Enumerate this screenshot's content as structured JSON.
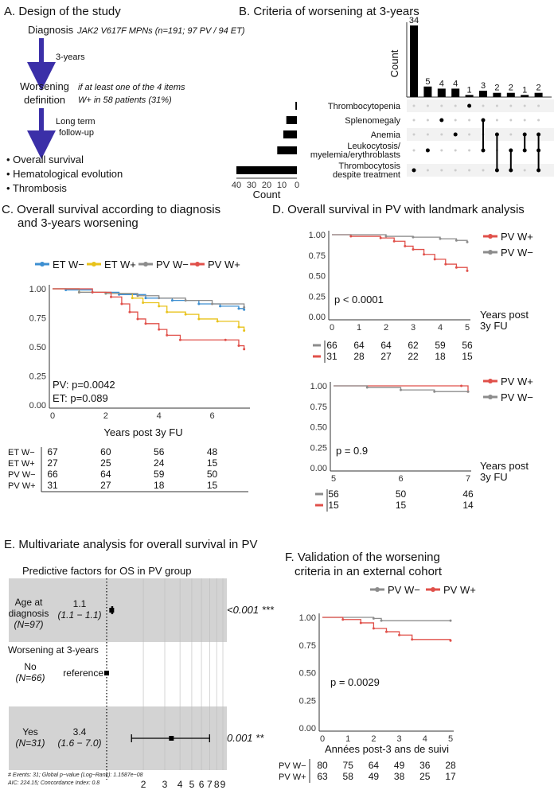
{
  "colors": {
    "arrow": "#3b2fa8",
    "et_wminus": "#3d8fd1",
    "et_wplus": "#e8c21a",
    "pv_wminus": "#8c8c8c",
    "pv_wplus": "#e0504a",
    "band": "#d3d3d3"
  },
  "panelA": {
    "title": "A. Design of the study",
    "diagnosis": "Diagnosis",
    "diagnosis_detail": "JAK2 V617F MPNs (n=191; 97 PV / 94 ET)",
    "arrow1_label": "3-years",
    "worsening_l1": "Worsening",
    "worsening_l2": "definition",
    "worsening_detail_l1": "if at least one of the 4 items",
    "worsening_detail_l2": "W+ in 58 patients (31%)",
    "arrow2_l1": "Long term",
    "arrow2_l2": "follow-up",
    "outcomes": [
      "• Overall survival",
      "• Hematological evolution",
      "• Thrombosis"
    ]
  },
  "chart_data": [
    {
      "id": "B",
      "type": "upset",
      "title": "B. Criteria of worsening at 3-years",
      "ylabel": "Count",
      "set_xlabel": "Count",
      "intersection_values": [
        34,
        5,
        4,
        4,
        1,
        3,
        2,
        2,
        1,
        2
      ],
      "sets": [
        "Thrombocytopenia",
        "Splenomegaly",
        "Anemia",
        "Leukocytosis/",
        "Thrombocytosis"
      ],
      "sets_line2": [
        "",
        "",
        "",
        "myelemia/erythroblasts",
        "despite treatment"
      ],
      "set_sizes": [
        1,
        7,
        9,
        13,
        40
      ],
      "set_axis_ticks": [
        "40",
        "30",
        "20",
        "10",
        "0"
      ],
      "matrix": [
        [
          4
        ],
        [
          3
        ],
        [
          1
        ],
        [
          2
        ],
        [
          0
        ],
        [
          1,
          3
        ],
        [
          2,
          4
        ],
        [
          3,
          4
        ],
        [
          2,
          3
        ],
        [
          2,
          3,
          4
        ]
      ]
    },
    {
      "id": "C",
      "type": "line",
      "title_l1": "C. Overall survival according to diagnosis",
      "title_l2": "and 3-years worsening",
      "xlabel": "Years post 3y FU",
      "xlim": [
        0,
        7.3
      ],
      "ylim": [
        0,
        1
      ],
      "xticks": [
        "0",
        "2",
        "4",
        "6"
      ],
      "yticks": [
        "0.00",
        "0.25",
        "0.50",
        "0.75",
        "1.00"
      ],
      "annotations": [
        "PV: p=0.0042",
        "ET: p=0.089"
      ],
      "series": [
        {
          "name": "ET W−",
          "color": "#3d8fd1",
          "points": [
            [
              0,
              1
            ],
            [
              0.5,
              0.99
            ],
            [
              1.5,
              0.97
            ],
            [
              2.5,
              0.95
            ],
            [
              3.5,
              0.92
            ],
            [
              4.5,
              0.9
            ],
            [
              5.5,
              0.87
            ],
            [
              6.3,
              0.85
            ],
            [
              7,
              0.83
            ],
            [
              7.2,
              0.82
            ]
          ]
        },
        {
          "name": "ET W+",
          "color": "#e8c21a",
          "points": [
            [
              0,
              1
            ],
            [
              1,
              0.97
            ],
            [
              2,
              0.96
            ],
            [
              3,
              0.92
            ],
            [
              3.4,
              0.88
            ],
            [
              4,
              0.85
            ],
            [
              4.3,
              0.8
            ],
            [
              5,
              0.78
            ],
            [
              5.5,
              0.74
            ],
            [
              6.2,
              0.72
            ],
            [
              7,
              0.67
            ],
            [
              7.2,
              0.64
            ]
          ]
        },
        {
          "name": "PV W−",
          "color": "#8c8c8c",
          "points": [
            [
              0,
              1
            ],
            [
              1,
              0.97
            ],
            [
              2,
              0.96
            ],
            [
              3.2,
              0.94
            ],
            [
              4,
              0.92
            ],
            [
              5,
              0.9
            ],
            [
              6,
              0.87
            ],
            [
              7.2,
              0.84
            ]
          ]
        },
        {
          "name": "PV W+",
          "color": "#e0504a",
          "points": [
            [
              0,
              1
            ],
            [
              1.5,
              0.97
            ],
            [
              2.2,
              0.93
            ],
            [
              2.6,
              0.87
            ],
            [
              2.9,
              0.8
            ],
            [
              3.2,
              0.74
            ],
            [
              3.5,
              0.7
            ],
            [
              4,
              0.65
            ],
            [
              4.3,
              0.6
            ],
            [
              4.8,
              0.56
            ],
            [
              6.5,
              0.56
            ],
            [
              7,
              0.51
            ],
            [
              7.2,
              0.48
            ]
          ]
        }
      ],
      "risk_table": [
        {
          "label": "ET W−",
          "values": [
            "67",
            "60",
            "56",
            "48"
          ]
        },
        {
          "label": "ET W+",
          "values": [
            "27",
            "25",
            "24",
            "15"
          ]
        },
        {
          "label": "PV W−",
          "values": [
            "66",
            "64",
            "59",
            "50"
          ]
        },
        {
          "label": "PV W+",
          "values": [
            "31",
            "27",
            "18",
            "15"
          ]
        }
      ]
    },
    {
      "id": "D1",
      "type": "line",
      "title": "D. Overall survival in PV with landmark analysis",
      "xlabel_l1": "Years post",
      "xlabel_l2": "3y FU",
      "xlim": [
        0,
        5
      ],
      "ylim": [
        0,
        1
      ],
      "xticks": [
        "0",
        "1",
        "2",
        "3",
        "4",
        "5"
      ],
      "yticks": [
        "0.00",
        "0.25",
        "0.50",
        "0.75",
        "1.00"
      ],
      "annotation": "p < 0.0001",
      "series": [
        {
          "name": "PV W+",
          "color": "#e0504a",
          "points": [
            [
              0,
              1
            ],
            [
              0.7,
              0.98
            ],
            [
              1.8,
              0.96
            ],
            [
              2.3,
              0.92
            ],
            [
              2.7,
              0.86
            ],
            [
              3,
              0.82
            ],
            [
              3.4,
              0.76
            ],
            [
              3.8,
              0.7
            ],
            [
              4.2,
              0.64
            ],
            [
              4.6,
              0.6
            ],
            [
              5,
              0.56
            ]
          ]
        },
        {
          "name": "PV W−",
          "color": "#8c8c8c",
          "points": [
            [
              0,
              1
            ],
            [
              2,
              0.98
            ],
            [
              3,
              0.97
            ],
            [
              4,
              0.95
            ],
            [
              4.6,
              0.93
            ],
            [
              5,
              0.91
            ]
          ]
        }
      ],
      "risk_table": [
        {
          "label": "PV W−",
          "color": "#8c8c8c",
          "values": [
            "66",
            "64",
            "64",
            "62",
            "59",
            "56"
          ]
        },
        {
          "label": "PV W+",
          "color": "#e0504a",
          "values": [
            "31",
            "28",
            "27",
            "22",
            "18",
            "15"
          ]
        }
      ]
    },
    {
      "id": "D2",
      "type": "line",
      "xlabel_l1": "Years post",
      "xlabel_l2": "3y FU",
      "xlim": [
        5,
        7
      ],
      "ylim": [
        0,
        1
      ],
      "xticks": [
        "5",
        "6",
        "7"
      ],
      "yticks": [
        "0.00",
        "0.25",
        "0.50",
        "0.75",
        "1.00"
      ],
      "annotation": "p = 0.9",
      "series": [
        {
          "name": "PV W+",
          "color": "#e0504a",
          "points": [
            [
              5,
              1
            ],
            [
              6.9,
              1
            ],
            [
              7,
              0.93
            ]
          ]
        },
        {
          "name": "PV W−",
          "color": "#8c8c8c",
          "points": [
            [
              5,
              1
            ],
            [
              5.5,
              0.98
            ],
            [
              6,
              0.95
            ],
            [
              6.5,
              0.93
            ],
            [
              7,
              0.93
            ]
          ]
        }
      ],
      "risk_table": [
        {
          "label": "PV W−",
          "color": "#8c8c8c",
          "values": [
            "56",
            "50",
            "46"
          ]
        },
        {
          "label": "PV W+",
          "color": "#e0504a",
          "values": [
            "15",
            "15",
            "14"
          ]
        }
      ]
    },
    {
      "id": "E",
      "type": "forest",
      "title": "E. Multivariate analysis for overall survival in PV",
      "subtitle": "Predictive factors for OS in PV group",
      "group_label": "Worsening at 3-years",
      "rows": [
        {
          "label_l1": "Age at",
          "label_l2": "diagnosis",
          "n": "(N=97)",
          "hr": 1.1,
          "lo": 1.1,
          "hi": 1.12,
          "hr_text": "1.1",
          "ci_text": "(1.1 − 1.1)",
          "p": "<0.001 ***",
          "band": true
        },
        {
          "label_l1": "No",
          "label_l2": "",
          "n": "(N=66)",
          "hr": 1.0,
          "lo": 1.0,
          "hi": 1.0,
          "hr_text": "reference",
          "ci_text": "",
          "p": "",
          "band": false
        },
        {
          "label_l1": "Yes",
          "label_l2": "",
          "n": "(N=31)",
          "hr": 3.4,
          "lo": 1.6,
          "hi": 7.0,
          "hr_text": "3.4",
          "ci_text": "(1.6 − 7.0)",
          "p": "0.001 **",
          "band": true
        }
      ],
      "xticks": [
        2,
        3,
        4,
        5,
        6,
        7,
        8,
        9
      ],
      "footnote_l1": "# Events: 31; Global p−value (Log−Rank): 1.1587e−08",
      "footnote_l2": "AIC: 224.15; Concordance Index: 0.8"
    },
    {
      "id": "F",
      "type": "line",
      "title_l1": "F. Validation of the worsening",
      "title_l2": "criteria in an external cohort",
      "xlabel": "Années post-3 ans de suivi",
      "xlim": [
        0,
        5
      ],
      "ylim": [
        0,
        1
      ],
      "xticks": [
        "0",
        "1",
        "2",
        "3",
        "4",
        "5"
      ],
      "yticks": [
        "0.00",
        "0.25",
        "0.50",
        "0.75",
        "1.00"
      ],
      "annotation": "p = 0.0029",
      "series": [
        {
          "name": "PV W−",
          "color": "#8c8c8c",
          "points": [
            [
              0,
              1
            ],
            [
              2,
              0.99
            ],
            [
              2.3,
              0.97
            ],
            [
              5,
              0.97
            ]
          ]
        },
        {
          "name": "PV W+",
          "color": "#e0504a",
          "points": [
            [
              0,
              1
            ],
            [
              0.8,
              0.98
            ],
            [
              1.5,
              0.95
            ],
            [
              2,
              0.9
            ],
            [
              2.5,
              0.87
            ],
            [
              3,
              0.84
            ],
            [
              3.5,
              0.8
            ],
            [
              5,
              0.79
            ]
          ]
        }
      ],
      "risk_table": [
        {
          "label": "PV W−",
          "color": "#8c8c8c",
          "values": [
            "80",
            "75",
            "64",
            "49",
            "36",
            "28"
          ]
        },
        {
          "label": "PV W+",
          "color": "#e0504a",
          "values": [
            "63",
            "58",
            "49",
            "38",
            "25",
            "17"
          ]
        }
      ]
    }
  ]
}
